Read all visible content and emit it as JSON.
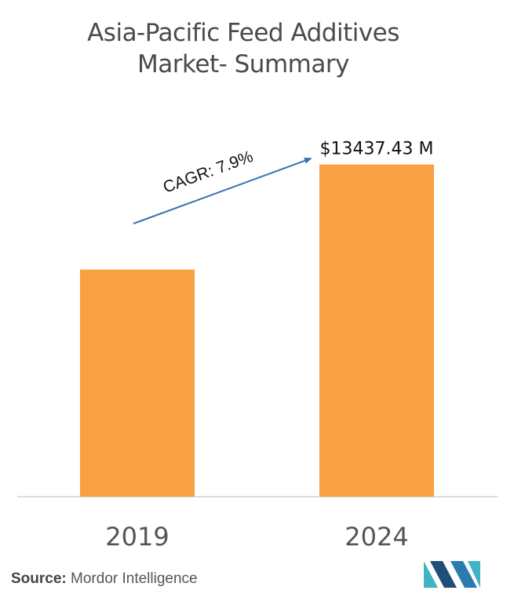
{
  "title_line1": "Asia-Pacific Feed Additives",
  "title_line2": "Market- Summary",
  "chart_data": {
    "type": "bar",
    "categories": [
      "2019",
      "2024"
    ],
    "values": [
      9190,
      13437.43
    ],
    "ylim": [
      0,
      14000
    ],
    "value_labels": [
      "",
      "$13437.43 M"
    ],
    "annotation": "CAGR: 7.9%",
    "bar_color": "#f9a043",
    "arrow_color": "#3a72b0",
    "grid": false
  },
  "source": {
    "prefix": "Source:",
    "text": "Mordor Intelligence"
  },
  "logo": {
    "icon": "mordor-intelligence-logo-icon",
    "colors": [
      "#1f4e79",
      "#41b3c4"
    ]
  }
}
